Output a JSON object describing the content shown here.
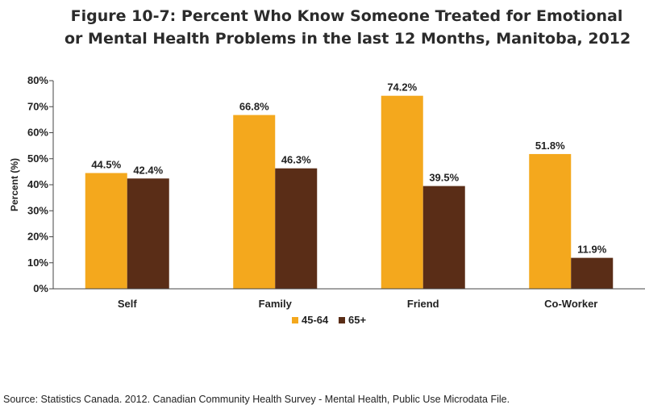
{
  "chart_data": {
    "type": "bar",
    "title": [
      "Figure 10-7: Percent Who Know Someone Treated for Emotional",
      "or Mental Health Problems in the last 12 Months, Manitoba, 2012"
    ],
    "ylabel": "Percent (%)",
    "xlabel": "",
    "categories": [
      "Self",
      "Family",
      "Friend",
      "Co-Worker"
    ],
    "yticks": [
      "0%",
      "10%",
      "20%",
      "30%",
      "40%",
      "50%",
      "60%",
      "70%",
      "80%"
    ],
    "ylim": [
      0,
      80
    ],
    "series": [
      {
        "name": "45-64",
        "color": "#F4A81D",
        "values": [
          44.5,
          66.8,
          74.2,
          51.8
        ],
        "labels": [
          "44.5%",
          "66.8%",
          "74.2%",
          "51.8%"
        ]
      },
      {
        "name": "65+",
        "color": "#5A2D17",
        "values": [
          42.4,
          46.3,
          39.5,
          11.9
        ],
        "labels": [
          "42.4%",
          "46.3%",
          "39.5%",
          "11.9%"
        ]
      }
    ],
    "legend": "bottom-center",
    "grid": false
  },
  "source": "Source: Statistics Canada. 2012. Canadian Community Health Survey - Mental Health, Public Use Microdata File."
}
